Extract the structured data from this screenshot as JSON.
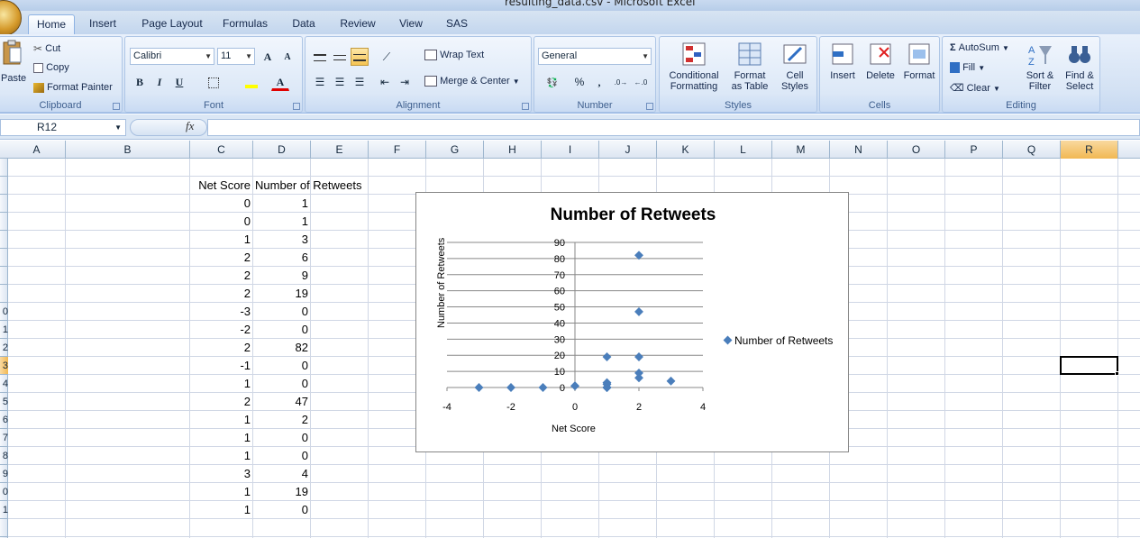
{
  "window": {
    "title": "resulting_data.csv - Microsoft Excel"
  },
  "tabs": [
    "Home",
    "Insert",
    "Page Layout",
    "Formulas",
    "Data",
    "Review",
    "View",
    "SAS"
  ],
  "active_tab": "Home",
  "clipboard": {
    "paste": "Paste",
    "cut": "Cut",
    "copy": "Copy",
    "format_painter": "Format Painter",
    "label": "Clipboard"
  },
  "font": {
    "name": "Calibri",
    "size": "11",
    "bold": "B",
    "italic": "I",
    "underline": "U",
    "label": "Font"
  },
  "alignment": {
    "wrap_text": "Wrap Text",
    "merge_center": "Merge & Center",
    "label": "Alignment"
  },
  "number": {
    "format": "General",
    "percent": "%",
    "comma": ",",
    "label": "Number"
  },
  "styles": {
    "conditional": [
      "Conditional",
      "Formatting"
    ],
    "format_table": [
      "Format",
      "as Table"
    ],
    "cell_styles": [
      "Cell",
      "Styles"
    ],
    "label": "Styles"
  },
  "cells": {
    "insert": "Insert",
    "delete": "Delete",
    "format": "Format",
    "label": "Cells"
  },
  "editing": {
    "autosum": "AutoSum",
    "fill": "Fill",
    "clear": "Clear",
    "sort": [
      "Sort &",
      "Filter"
    ],
    "find": [
      "Find &",
      "Select"
    ],
    "label": "Editing"
  },
  "formula_bar": {
    "name_box": "R12",
    "fx": "fx",
    "formula": ""
  },
  "columns": [
    "A",
    "B",
    "C",
    "D",
    "E",
    "F",
    "G",
    "H",
    "I",
    "J",
    "K",
    "L",
    "M",
    "N",
    "O",
    "P",
    "Q",
    "R"
  ],
  "selected_column": "R",
  "row_numbers": [
    "",
    "",
    "",
    "",
    "",
    "",
    "",
    "",
    "0",
    "1",
    "2",
    "3",
    "4",
    "5",
    "6",
    "7",
    "8",
    "9",
    "0",
    "1"
  ],
  "selected_row_index": 11,
  "table": {
    "headers": [
      "Net Score",
      "Number of Retweets"
    ],
    "rows": [
      [
        0,
        1
      ],
      [
        0,
        1
      ],
      [
        1,
        3
      ],
      [
        2,
        6
      ],
      [
        2,
        9
      ],
      [
        2,
        19
      ],
      [
        -3,
        0
      ],
      [
        -2,
        0
      ],
      [
        2,
        82
      ],
      [
        -1,
        0
      ],
      [
        1,
        0
      ],
      [
        2,
        47
      ],
      [
        1,
        2
      ],
      [
        1,
        0
      ],
      [
        1,
        0
      ],
      [
        3,
        4
      ],
      [
        1,
        19
      ],
      [
        1,
        0
      ]
    ]
  },
  "colors": {
    "marker": "#4a7ebb",
    "selected_header": "#f1b853"
  },
  "chart_data": {
    "type": "scatter",
    "title": "Number of Retweets",
    "xlabel": "Net Score",
    "ylabel": "Number of Retweets",
    "xlim": [
      -4,
      4
    ],
    "ylim": [
      0,
      90
    ],
    "xticks": [
      -4,
      -2,
      0,
      2,
      4
    ],
    "yticks": [
      0,
      10,
      20,
      30,
      40,
      50,
      60,
      70,
      80,
      90
    ],
    "grid": "horizontal",
    "legend_placement": "right",
    "series": [
      {
        "name": "Number of Retweets",
        "x": [
          0,
          0,
          1,
          2,
          2,
          2,
          -3,
          -2,
          2,
          -1,
          1,
          2,
          1,
          1,
          1,
          3,
          1,
          1
        ],
        "y": [
          1,
          1,
          3,
          6,
          9,
          19,
          0,
          0,
          82,
          0,
          0,
          47,
          2,
          0,
          0,
          4,
          19,
          0
        ]
      }
    ]
  }
}
